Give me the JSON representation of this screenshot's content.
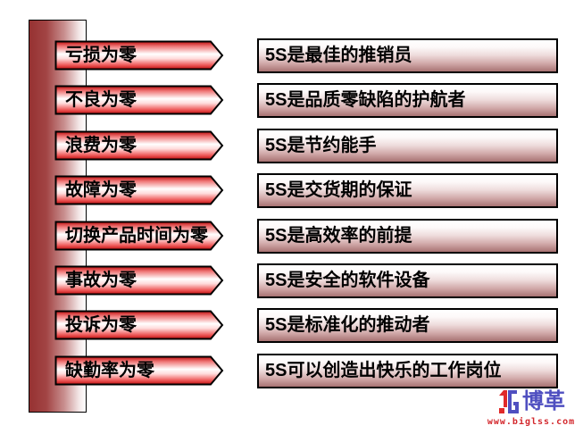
{
  "slide": {
    "background": "#ffffff",
    "rows": [
      {
        "arrow_label": "亏损为零",
        "box_label": "5S是最佳的推销员"
      },
      {
        "arrow_label": "不良为零",
        "box_label": "5S是品质零缺陷的护航者"
      },
      {
        "arrow_label": "浪费为零",
        "box_label": "5S是节约能手"
      },
      {
        "arrow_label": "故障为零",
        "box_label": "5S是交货期的保证"
      },
      {
        "arrow_label": "切换产品时间为零",
        "box_label": "5S是高效率的前提"
      },
      {
        "arrow_label": "事故为零",
        "box_label": "5S是安全的软件设备"
      },
      {
        "arrow_label": "投诉为零",
        "box_label": "5S是标准化的推动者"
      },
      {
        "arrow_label": "缺勤率为零",
        "box_label": "5S可以创造出快乐的工作岗位"
      }
    ],
    "colors": {
      "arrow_red": "#c00f0f",
      "arrow_highlight": "#ffffff",
      "box_bottom_rose": "#a87272",
      "bar_dark_red": "#963232",
      "outline_black": "#000000"
    },
    "logo": {
      "brand": "博革",
      "url": "www.biglss.com",
      "brand_color": "#4f4fc0",
      "url_color": "#d3282d"
    }
  }
}
